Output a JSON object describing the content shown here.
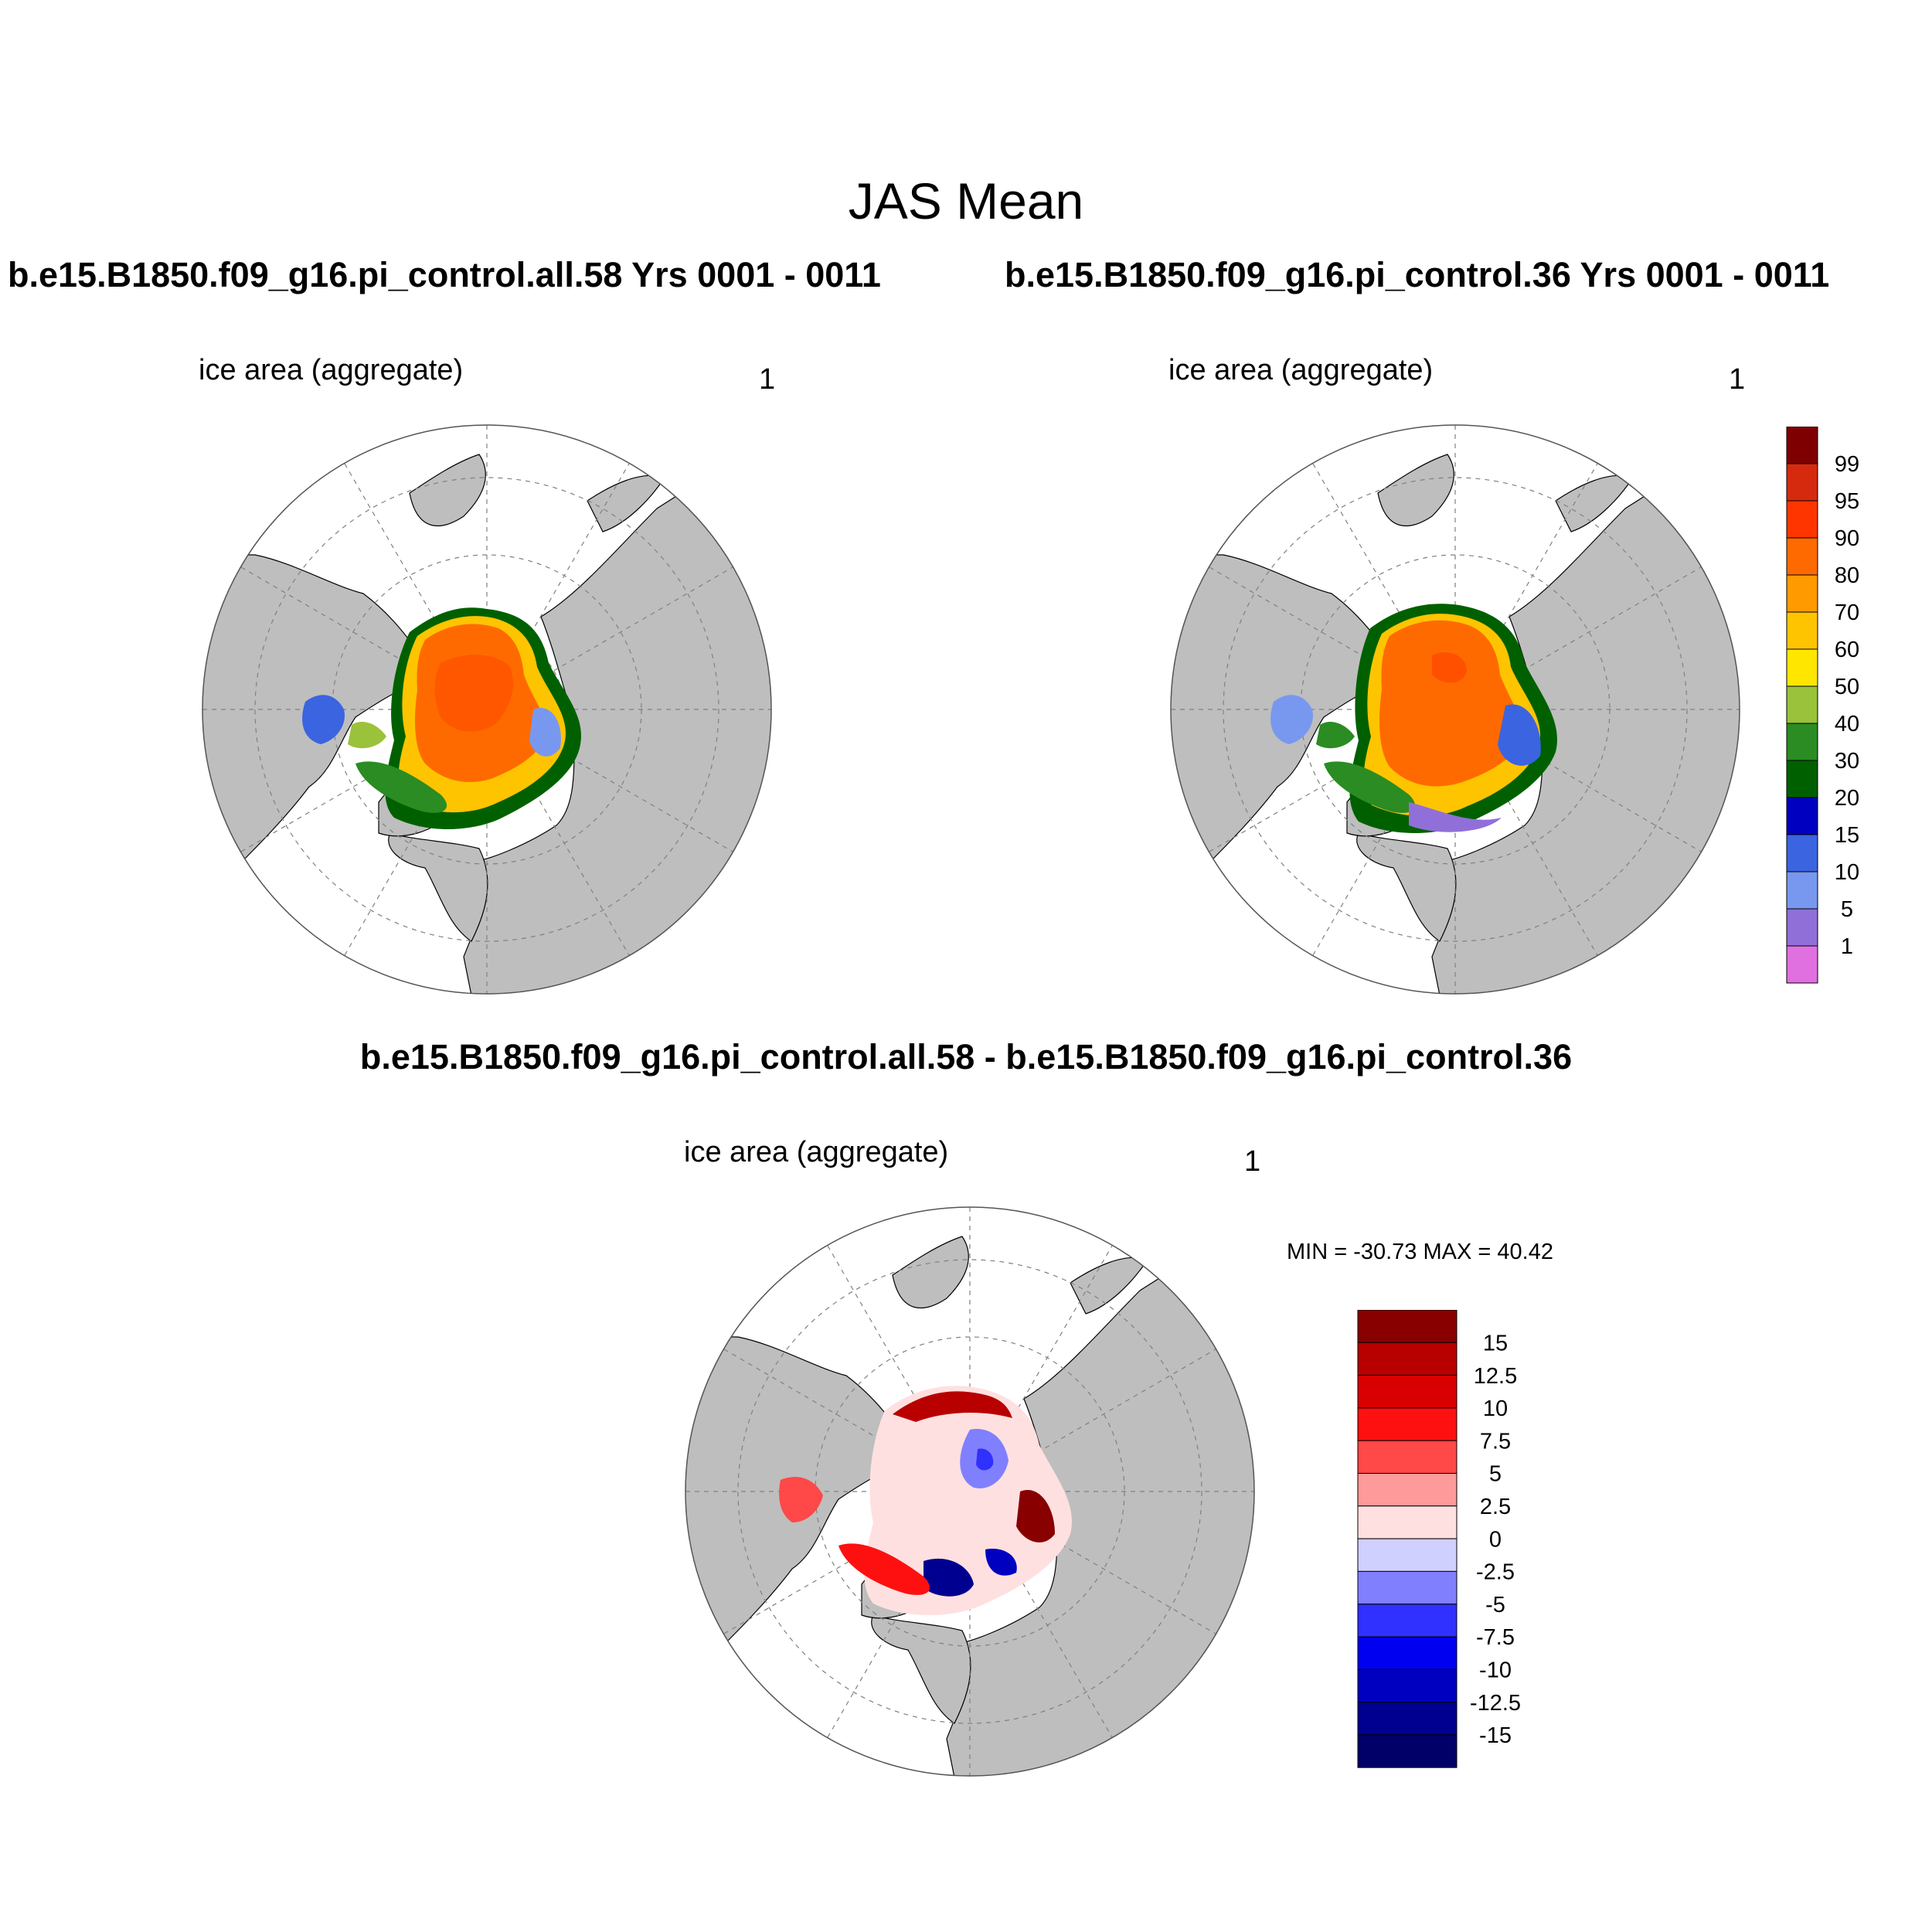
{
  "figure": {
    "title": "JAS Mean",
    "panel1": {
      "run_title": "b.e15.B1850.f09_g16.pi_control.all.58  Yrs 0001 - 0011",
      "variable": "ice area  (aggregate)",
      "units": "1"
    },
    "panel2": {
      "run_title": "b.e15.B1850.f09_g16.pi_control.36  Yrs 0001 - 0011",
      "variable": "ice area  (aggregate)",
      "units": "1"
    },
    "diff": {
      "run_title": "b.e15.B1850.f09_g16.pi_control.all.58 - b.e15.B1850.f09_g16.pi_control.36",
      "variable": "ice area  (aggregate)",
      "units": "1",
      "minmax": "MIN = -30.73 MAX =  40.42"
    }
  },
  "legend_abs": {
    "labels": [
      "99",
      "95",
      "90",
      "80",
      "70",
      "60",
      "50",
      "40",
      "30",
      "20",
      "15",
      "10",
      "5",
      "1"
    ],
    "colors": [
      "#7f0000",
      "#d62a0f",
      "#ff3500",
      "#ff6a00",
      "#ff9a00",
      "#ffc400",
      "#ffe600",
      "#9ac23a",
      "#2a8c22",
      "#006000",
      "#0000c0",
      "#3b64e0",
      "#7898f0",
      "#9070d8",
      "#e070e0"
    ]
  },
  "legend_diff": {
    "labels": [
      "15",
      "12.5",
      "10",
      "7.5",
      "5",
      "2.5",
      "0",
      "-2.5",
      "-5",
      "-7.5",
      "-10",
      "-12.5",
      "-15"
    ],
    "colors": [
      "#880000",
      "#b80000",
      "#d80000",
      "#ff1010",
      "#ff4848",
      "#ff9a9a",
      "#ffe0e0",
      "#d0d0ff",
      "#8080ff",
      "#3030ff",
      "#0000f0",
      "#0000c0",
      "#000090",
      "#000068"
    ]
  },
  "map_colors": {
    "land": "#bebebe",
    "ocean": "#ffffff",
    "grid": "#808080"
  }
}
